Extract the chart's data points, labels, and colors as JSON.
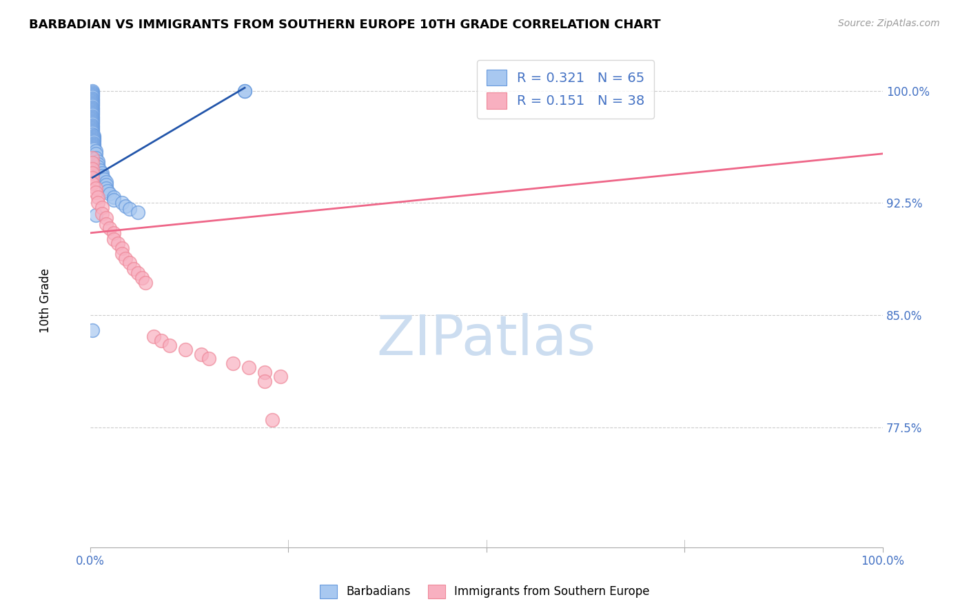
{
  "title": "BARBADIAN VS IMMIGRANTS FROM SOUTHERN EUROPE 10TH GRADE CORRELATION CHART",
  "source": "Source: ZipAtlas.com",
  "ylabel": "10th Grade",
  "xlim": [
    0.0,
    1.0
  ],
  "ylim": [
    0.695,
    1.025
  ],
  "y_ticks": [
    0.775,
    0.85,
    0.925,
    1.0
  ],
  "y_tick_labels": [
    "77.5%",
    "85.0%",
    "92.5%",
    "100.0%"
  ],
  "x_tick_positions": [
    0.0,
    0.25,
    0.5,
    0.75,
    1.0
  ],
  "x_tick_labels": [
    "0.0%",
    "",
    "",
    "",
    "100.0%"
  ],
  "blue_R": 0.321,
  "blue_N": 65,
  "pink_R": 0.151,
  "pink_N": 38,
  "blue_color": "#a8c8f0",
  "blue_edge_color": "#6699dd",
  "pink_color": "#f8b0c0",
  "pink_edge_color": "#ee8899",
  "blue_line_color": "#2255aa",
  "pink_line_color": "#ee6688",
  "legend_label_blue": "Barbadians",
  "legend_label_pink": "Immigrants from Southern Europe",
  "watermark_color": "#ccddf0",
  "blue_x": [
    0.003,
    0.003,
    0.003,
    0.003,
    0.003,
    0.003,
    0.003,
    0.003,
    0.003,
    0.003,
    0.003,
    0.003,
    0.003,
    0.003,
    0.003,
    0.003,
    0.003,
    0.003,
    0.003,
    0.003,
    0.003,
    0.003,
    0.003,
    0.003,
    0.003,
    0.003,
    0.003,
    0.003,
    0.003,
    0.003,
    0.005,
    0.005,
    0.005,
    0.005,
    0.005,
    0.005,
    0.005,
    0.005,
    0.005,
    0.005,
    0.007,
    0.007,
    0.007,
    0.01,
    0.01,
    0.01,
    0.012,
    0.015,
    0.015,
    0.018,
    0.02,
    0.02,
    0.02,
    0.022,
    0.025,
    0.03,
    0.03,
    0.04,
    0.045,
    0.05,
    0.06,
    0.007,
    0.195,
    0.195,
    0.003
  ],
  "blue_y": [
    1.0,
    0.999,
    0.998,
    0.997,
    0.996,
    0.995,
    0.994,
    0.993,
    0.992,
    0.991,
    0.99,
    0.989,
    0.988,
    0.987,
    0.986,
    0.985,
    0.984,
    0.983,
    0.982,
    0.981,
    0.98,
    0.979,
    0.978,
    0.977,
    0.976,
    0.975,
    0.974,
    0.973,
    0.972,
    0.971,
    0.97,
    0.969,
    0.968,
    0.967,
    0.966,
    0.965,
    0.964,
    0.963,
    0.962,
    0.961,
    0.96,
    0.958,
    0.955,
    0.953,
    0.951,
    0.949,
    0.947,
    0.945,
    0.943,
    0.941,
    0.939,
    0.937,
    0.935,
    0.933,
    0.931,
    0.929,
    0.927,
    0.925,
    0.923,
    0.921,
    0.919,
    0.917,
    1.0,
    1.0,
    0.84
  ],
  "pink_x": [
    0.003,
    0.003,
    0.003,
    0.003,
    0.003,
    0.003,
    0.007,
    0.007,
    0.01,
    0.01,
    0.015,
    0.015,
    0.02,
    0.02,
    0.025,
    0.03,
    0.03,
    0.035,
    0.04,
    0.04,
    0.045,
    0.05,
    0.055,
    0.06,
    0.065,
    0.07,
    0.08,
    0.09,
    0.1,
    0.12,
    0.14,
    0.15,
    0.18,
    0.2,
    0.22,
    0.24,
    0.22,
    0.23
  ],
  "pink_y": [
    0.955,
    0.952,
    0.948,
    0.945,
    0.942,
    0.938,
    0.935,
    0.932,
    0.929,
    0.925,
    0.922,
    0.918,
    0.915,
    0.911,
    0.908,
    0.905,
    0.901,
    0.898,
    0.895,
    0.891,
    0.888,
    0.885,
    0.881,
    0.878,
    0.875,
    0.872,
    0.836,
    0.833,
    0.83,
    0.827,
    0.824,
    0.821,
    0.818,
    0.815,
    0.812,
    0.809,
    0.806,
    0.78
  ],
  "blue_trend_x": [
    0.003,
    0.195
  ],
  "blue_trend_y": [
    0.942,
    1.002
  ],
  "pink_trend_x": [
    0.0,
    1.0
  ],
  "pink_trend_y": [
    0.905,
    0.958
  ]
}
